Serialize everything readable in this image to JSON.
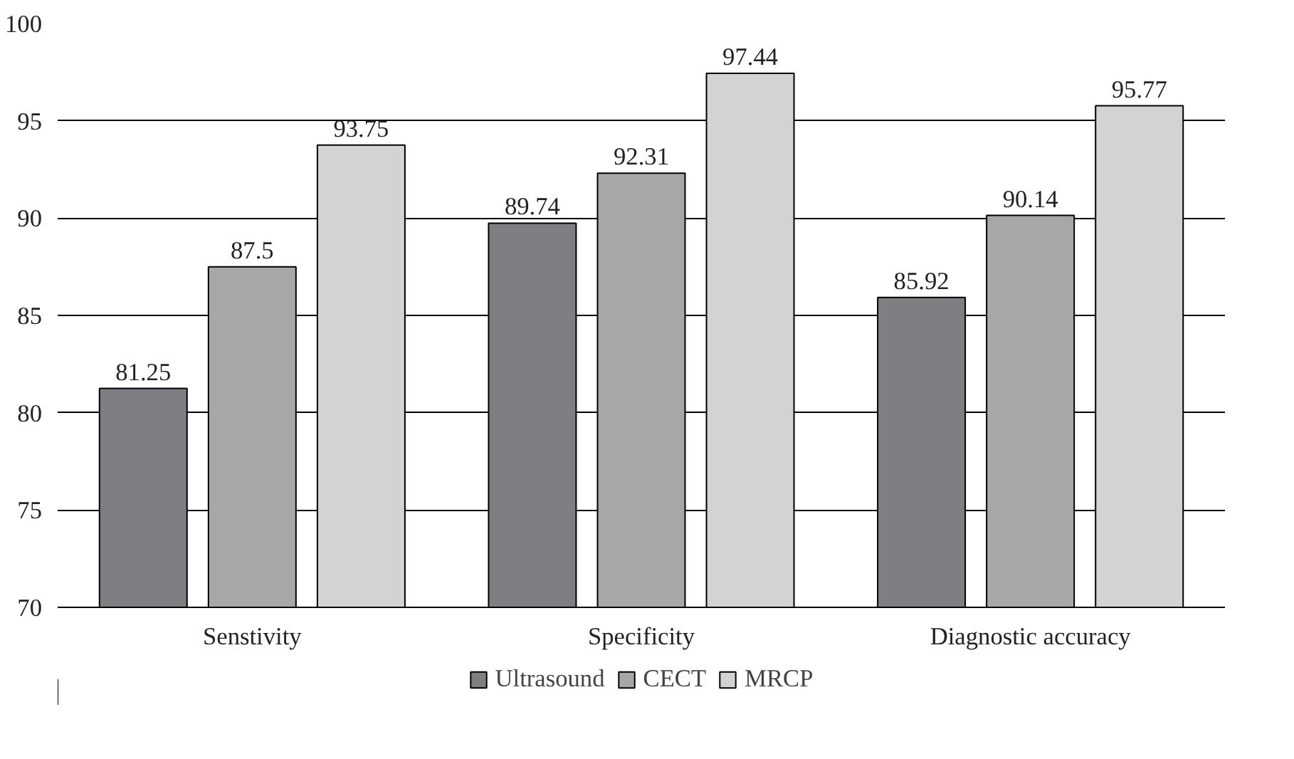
{
  "chart_data": {
    "type": "bar",
    "categories": [
      "Senstivity",
      "Specificity",
      "Diagnostic accuracy"
    ],
    "series": [
      {
        "name": "Ultrasound",
        "color": "#7f7f83",
        "values": [
          81.25,
          89.74,
          85.92
        ]
      },
      {
        "name": "CECT",
        "color": "#a7a7aa",
        "values": [
          87.5,
          92.31,
          90.14
        ]
      },
      {
        "name": "MRCP",
        "color": "#d3d3d5",
        "values": [
          93.75,
          97.44,
          95.77
        ]
      }
    ],
    "ylim": [
      70,
      100
    ],
    "yticks": [
      70,
      75,
      80,
      85,
      90,
      95,
      100
    ],
    "grid": "y",
    "legend": "bottom",
    "data_labels": true
  }
}
